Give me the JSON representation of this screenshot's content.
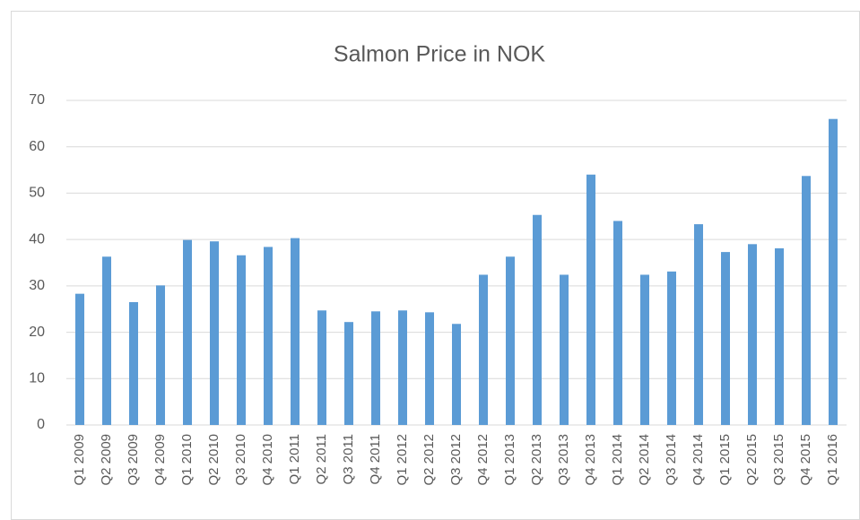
{
  "chart_data": {
    "type": "bar",
    "title": "Salmon Price in NOK",
    "categories": [
      "Q1 2009",
      "Q2 2009",
      "Q3 2009",
      "Q4 2009",
      "Q1 2010",
      "Q2 2010",
      "Q3 2010",
      "Q4 2010",
      "Q1 2011",
      "Q2 2011",
      "Q3 2011",
      "Q4 2011",
      "Q1 2012",
      "Q2 2012",
      "Q3 2012",
      "Q4 2012",
      "Q1 2013",
      "Q2 2013",
      "Q3 2013",
      "Q4 2013",
      "Q1 2014",
      "Q2 2014",
      "Q3 2014",
      "Q4 2014",
      "Q1 2015",
      "Q2 2015",
      "Q3 2015",
      "Q4 2015",
      "Q1 2016"
    ],
    "values": [
      28.3,
      36.3,
      26.5,
      30.1,
      39.9,
      39.6,
      36.6,
      38.4,
      40.3,
      24.7,
      22.2,
      24.5,
      24.7,
      24.3,
      21.8,
      32.4,
      36.3,
      45.3,
      32.4,
      54.0,
      44.0,
      32.4,
      33.1,
      43.3,
      37.3,
      39.0,
      38.1,
      53.7,
      66.0
    ],
    "color": "#5b9bd5",
    "ylim": [
      0,
      70
    ],
    "yticks": [
      0,
      10,
      20,
      30,
      40,
      50,
      60,
      70
    ],
    "grid": true
  }
}
